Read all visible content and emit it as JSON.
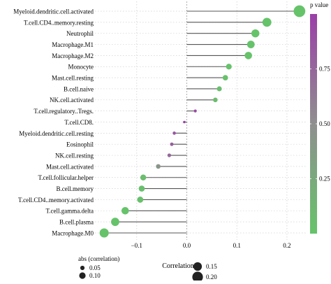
{
  "chart_data": {
    "type": "lollipop",
    "xlabel": "Correlation",
    "xlim": [
      -0.175,
      0.235
    ],
    "xticks": [
      -0.1,
      0.0,
      0.1,
      0.2
    ],
    "xtick_labels": [
      "−0.1",
      "0.0",
      "0.1",
      "0.2"
    ],
    "grid": true,
    "categories": [
      "Myeloid.dendritic.cell.activated",
      "T.cell.CD4..memory.resting",
      "Neutrophil",
      "Macrophage.M1",
      "Macrophage.M2",
      "Monocyte",
      "Mast.cell.resting",
      "B.cell.naive",
      "NK.cell.activated",
      "T.cell.regulatory..Tregs.",
      "T.cell.CD8.",
      "Myeloid.dendritic.cell.resting",
      "Eosinophil",
      "NK.cell.resting",
      "Mast.cell.activated",
      "T.cell.follicular.helper",
      "B.cell.memory",
      "T.cell.CD4..memory.activated",
      "T.cell.gamma.delta",
      "B.cell.plasma",
      "Macrophage.M0"
    ],
    "correlation": [
      0.225,
      0.16,
      0.137,
      0.128,
      0.123,
      0.084,
      0.077,
      0.065,
      0.057,
      0.017,
      -0.005,
      -0.025,
      -0.03,
      -0.035,
      -0.057,
      -0.087,
      -0.09,
      -0.093,
      -0.123,
      -0.143,
      -0.165
    ],
    "p_value": [
      0.0,
      0.0,
      0.0,
      0.0,
      0.0,
      0.01,
      0.02,
      0.05,
      0.08,
      0.95,
      1.0,
      0.85,
      0.8,
      0.75,
      0.45,
      0.05,
      0.04,
      0.03,
      0.0,
      0.0,
      0.0
    ],
    "color_legend": {
      "title": "p value",
      "ticks": [
        0.25,
        0.5,
        0.75
      ],
      "tick_labels": [
        "0.25",
        "0.50",
        "0.75"
      ],
      "low_color": "#66c36a",
      "high_color": "#9b3fa8",
      "mid_color": "#8f8f8f"
    },
    "size_legend": {
      "title": "abs (correlation)",
      "values": [
        0.05,
        0.1,
        0.15,
        0.2
      ],
      "labels": [
        "0.05",
        "0.10",
        "0.15",
        "0.20"
      ]
    },
    "colors": {
      "stem": "#555555",
      "grid": "#d0d0d0",
      "zero_line": "#9a9a9a"
    }
  }
}
